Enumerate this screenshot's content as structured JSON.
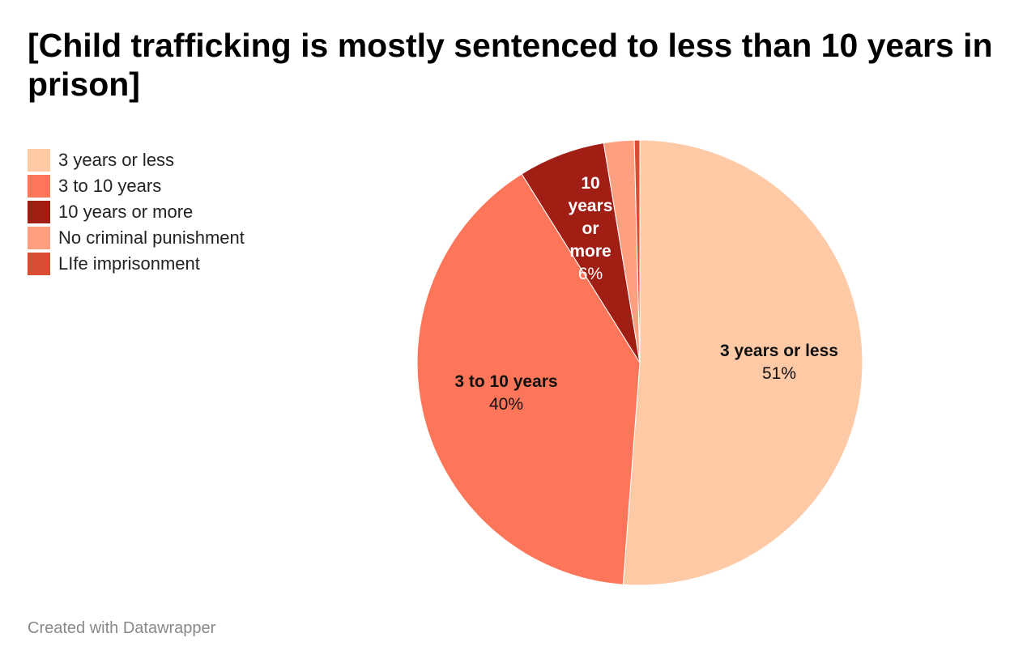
{
  "chart_data": {
    "type": "pie",
    "title": "[Child trafficking is mostly sentenced to less than 10 years in prison]",
    "categories": [
      "3 years or less",
      "3 to 10 years",
      "10 years or more",
      "No criminal punishment",
      "LIfe imprisonment"
    ],
    "values": [
      51.2,
      39.9,
      6.3,
      2.2,
      0.4
    ],
    "colors": [
      "#fec9a5",
      "#fe7659",
      "#a11e14",
      "#fe9f80",
      "#d94e33"
    ],
    "legend_position": "top-left",
    "data_labels": [
      {
        "name_lines": [
          "3 years or less"
        ],
        "value": "51%",
        "color": "#111111"
      },
      {
        "name_lines": [
          "3 to 10 years"
        ],
        "value": "40%",
        "color": "#111111"
      },
      {
        "name_lines": [
          "10",
          "years",
          "or",
          "more"
        ],
        "value": "6%",
        "color": "#ffffff"
      }
    ]
  },
  "footer": {
    "credit": "Created with Datawrapper"
  }
}
